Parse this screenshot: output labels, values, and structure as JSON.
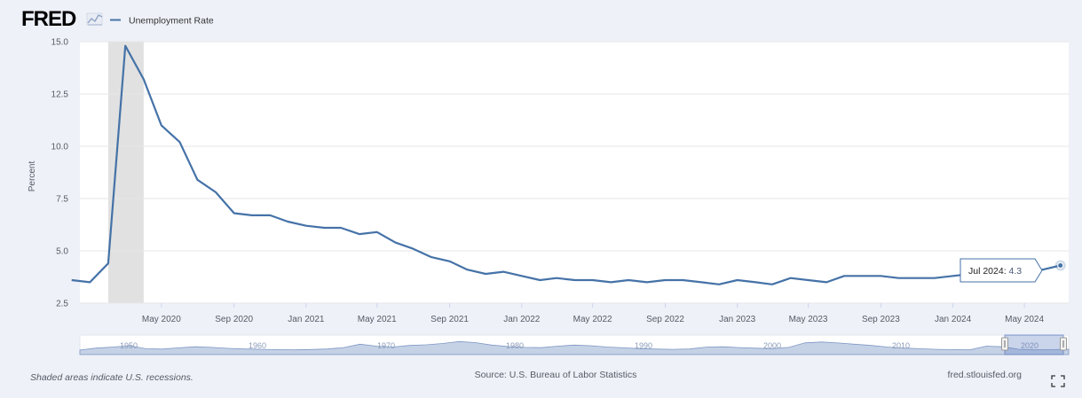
{
  "header": {
    "logo_text": "FRED",
    "legend_label": "Unemployment Rate"
  },
  "colors": {
    "series": "#4572a7",
    "recession": "#e1e1e1",
    "plot_bg": "#ffffff",
    "frame_bg": "#eef1f8",
    "navigator_fill": "#9fb4d6"
  },
  "chart_data": {
    "type": "line",
    "title": "",
    "ylabel": "Percent",
    "ylim": [
      2.5,
      15.0
    ],
    "y_ticks": [
      "2.5",
      "5.0",
      "7.5",
      "10.0",
      "12.5",
      "15.0"
    ],
    "x_range": [
      "2019-12-15",
      "2024-07-15"
    ],
    "x_tick_labels": [
      "May 2020",
      "Sep 2020",
      "Jan 2021",
      "May 2021",
      "Sep 2021",
      "Jan 2022",
      "May 2022",
      "Sep 2022",
      "Jan 2023",
      "May 2023",
      "Sep 2023",
      "Jan 2024",
      "May 2024"
    ],
    "x_tick_dates": [
      "2020-05-01",
      "2020-09-01",
      "2021-01-01",
      "2021-05-01",
      "2021-09-01",
      "2022-01-01",
      "2022-05-01",
      "2022-09-01",
      "2023-01-01",
      "2023-05-01",
      "2023-09-01",
      "2024-01-01",
      "2024-05-01"
    ],
    "recession": {
      "start": "2020-02-01",
      "end": "2020-04-01"
    },
    "grid": true,
    "series": [
      {
        "name": "Unemployment Rate",
        "x": [
          "2019-12-01",
          "2020-01-01",
          "2020-02-01",
          "2020-03-01",
          "2020-04-01",
          "2020-05-01",
          "2020-06-01",
          "2020-07-01",
          "2020-08-01",
          "2020-09-01",
          "2020-10-01",
          "2020-11-01",
          "2020-12-01",
          "2021-01-01",
          "2021-02-01",
          "2021-03-01",
          "2021-04-01",
          "2021-05-01",
          "2021-06-01",
          "2021-07-01",
          "2021-08-01",
          "2021-09-01",
          "2021-10-01",
          "2021-11-01",
          "2021-12-01",
          "2022-01-01",
          "2022-02-01",
          "2022-03-01",
          "2022-04-01",
          "2022-05-01",
          "2022-06-01",
          "2022-07-01",
          "2022-08-01",
          "2022-09-01",
          "2022-10-01",
          "2022-11-01",
          "2022-12-01",
          "2023-01-01",
          "2023-02-01",
          "2023-03-01",
          "2023-04-01",
          "2023-05-01",
          "2023-06-01",
          "2023-07-01",
          "2023-08-01",
          "2023-09-01",
          "2023-10-01",
          "2023-11-01",
          "2023-12-01",
          "2024-01-01",
          "2024-02-01",
          "2024-03-01",
          "2024-04-01",
          "2024-05-01",
          "2024-06-01",
          "2024-07-01"
        ],
        "values": [
          3.6,
          3.5,
          4.4,
          14.8,
          13.2,
          11.0,
          10.2,
          8.4,
          7.8,
          6.8,
          6.7,
          6.7,
          6.4,
          6.2,
          6.1,
          6.1,
          5.8,
          5.9,
          5.4,
          5.1,
          4.7,
          4.5,
          4.1,
          3.9,
          4.0,
          3.8,
          3.6,
          3.7,
          3.6,
          3.6,
          3.5,
          3.6,
          3.5,
          3.6,
          3.6,
          3.5,
          3.4,
          3.6,
          3.5,
          3.4,
          3.7,
          3.6,
          3.5,
          3.8,
          3.8,
          3.8,
          3.7,
          3.7,
          3.7,
          3.8,
          3.9,
          3.9,
          4.0,
          4.1,
          4.1,
          4.3
        ]
      }
    ],
    "tooltip": {
      "label": "Jul 2024:",
      "value": "4.3"
    },
    "navigator": {
      "labels": [
        "1950",
        "1960",
        "1970",
        "1980",
        "1990",
        "2000",
        "2010",
        "2020"
      ],
      "values": [
        3.5,
        5.0,
        5.8,
        6.8,
        4.5,
        4.2,
        5.2,
        6.0,
        5.5,
        4.8,
        4.3,
        4.0,
        3.8,
        3.6,
        3.9,
        4.3,
        5.4,
        8.0,
        6.5,
        5.8,
        7.0,
        7.5,
        8.5,
        10.0,
        9.2,
        7.3,
        6.2,
        5.5,
        5.3,
        6.5,
        7.3,
        6.8,
        5.8,
        5.2,
        4.6,
        4.2,
        4.0,
        4.3,
        5.7,
        6.0,
        5.4,
        4.9,
        4.6,
        5.5,
        9.0,
        9.7,
        8.9,
        8.0,
        7.0,
        5.8,
        5.0,
        4.5,
        4.0,
        3.8,
        3.6,
        6.5,
        6.0,
        4.0,
        3.6,
        3.8,
        4.1
      ]
    }
  },
  "footer": {
    "recession_note": "Shaded areas indicate U.S. recessions.",
    "source": "Source: U.S. Bureau of Labor Statistics",
    "site": "fred.stlouisfed.org"
  }
}
